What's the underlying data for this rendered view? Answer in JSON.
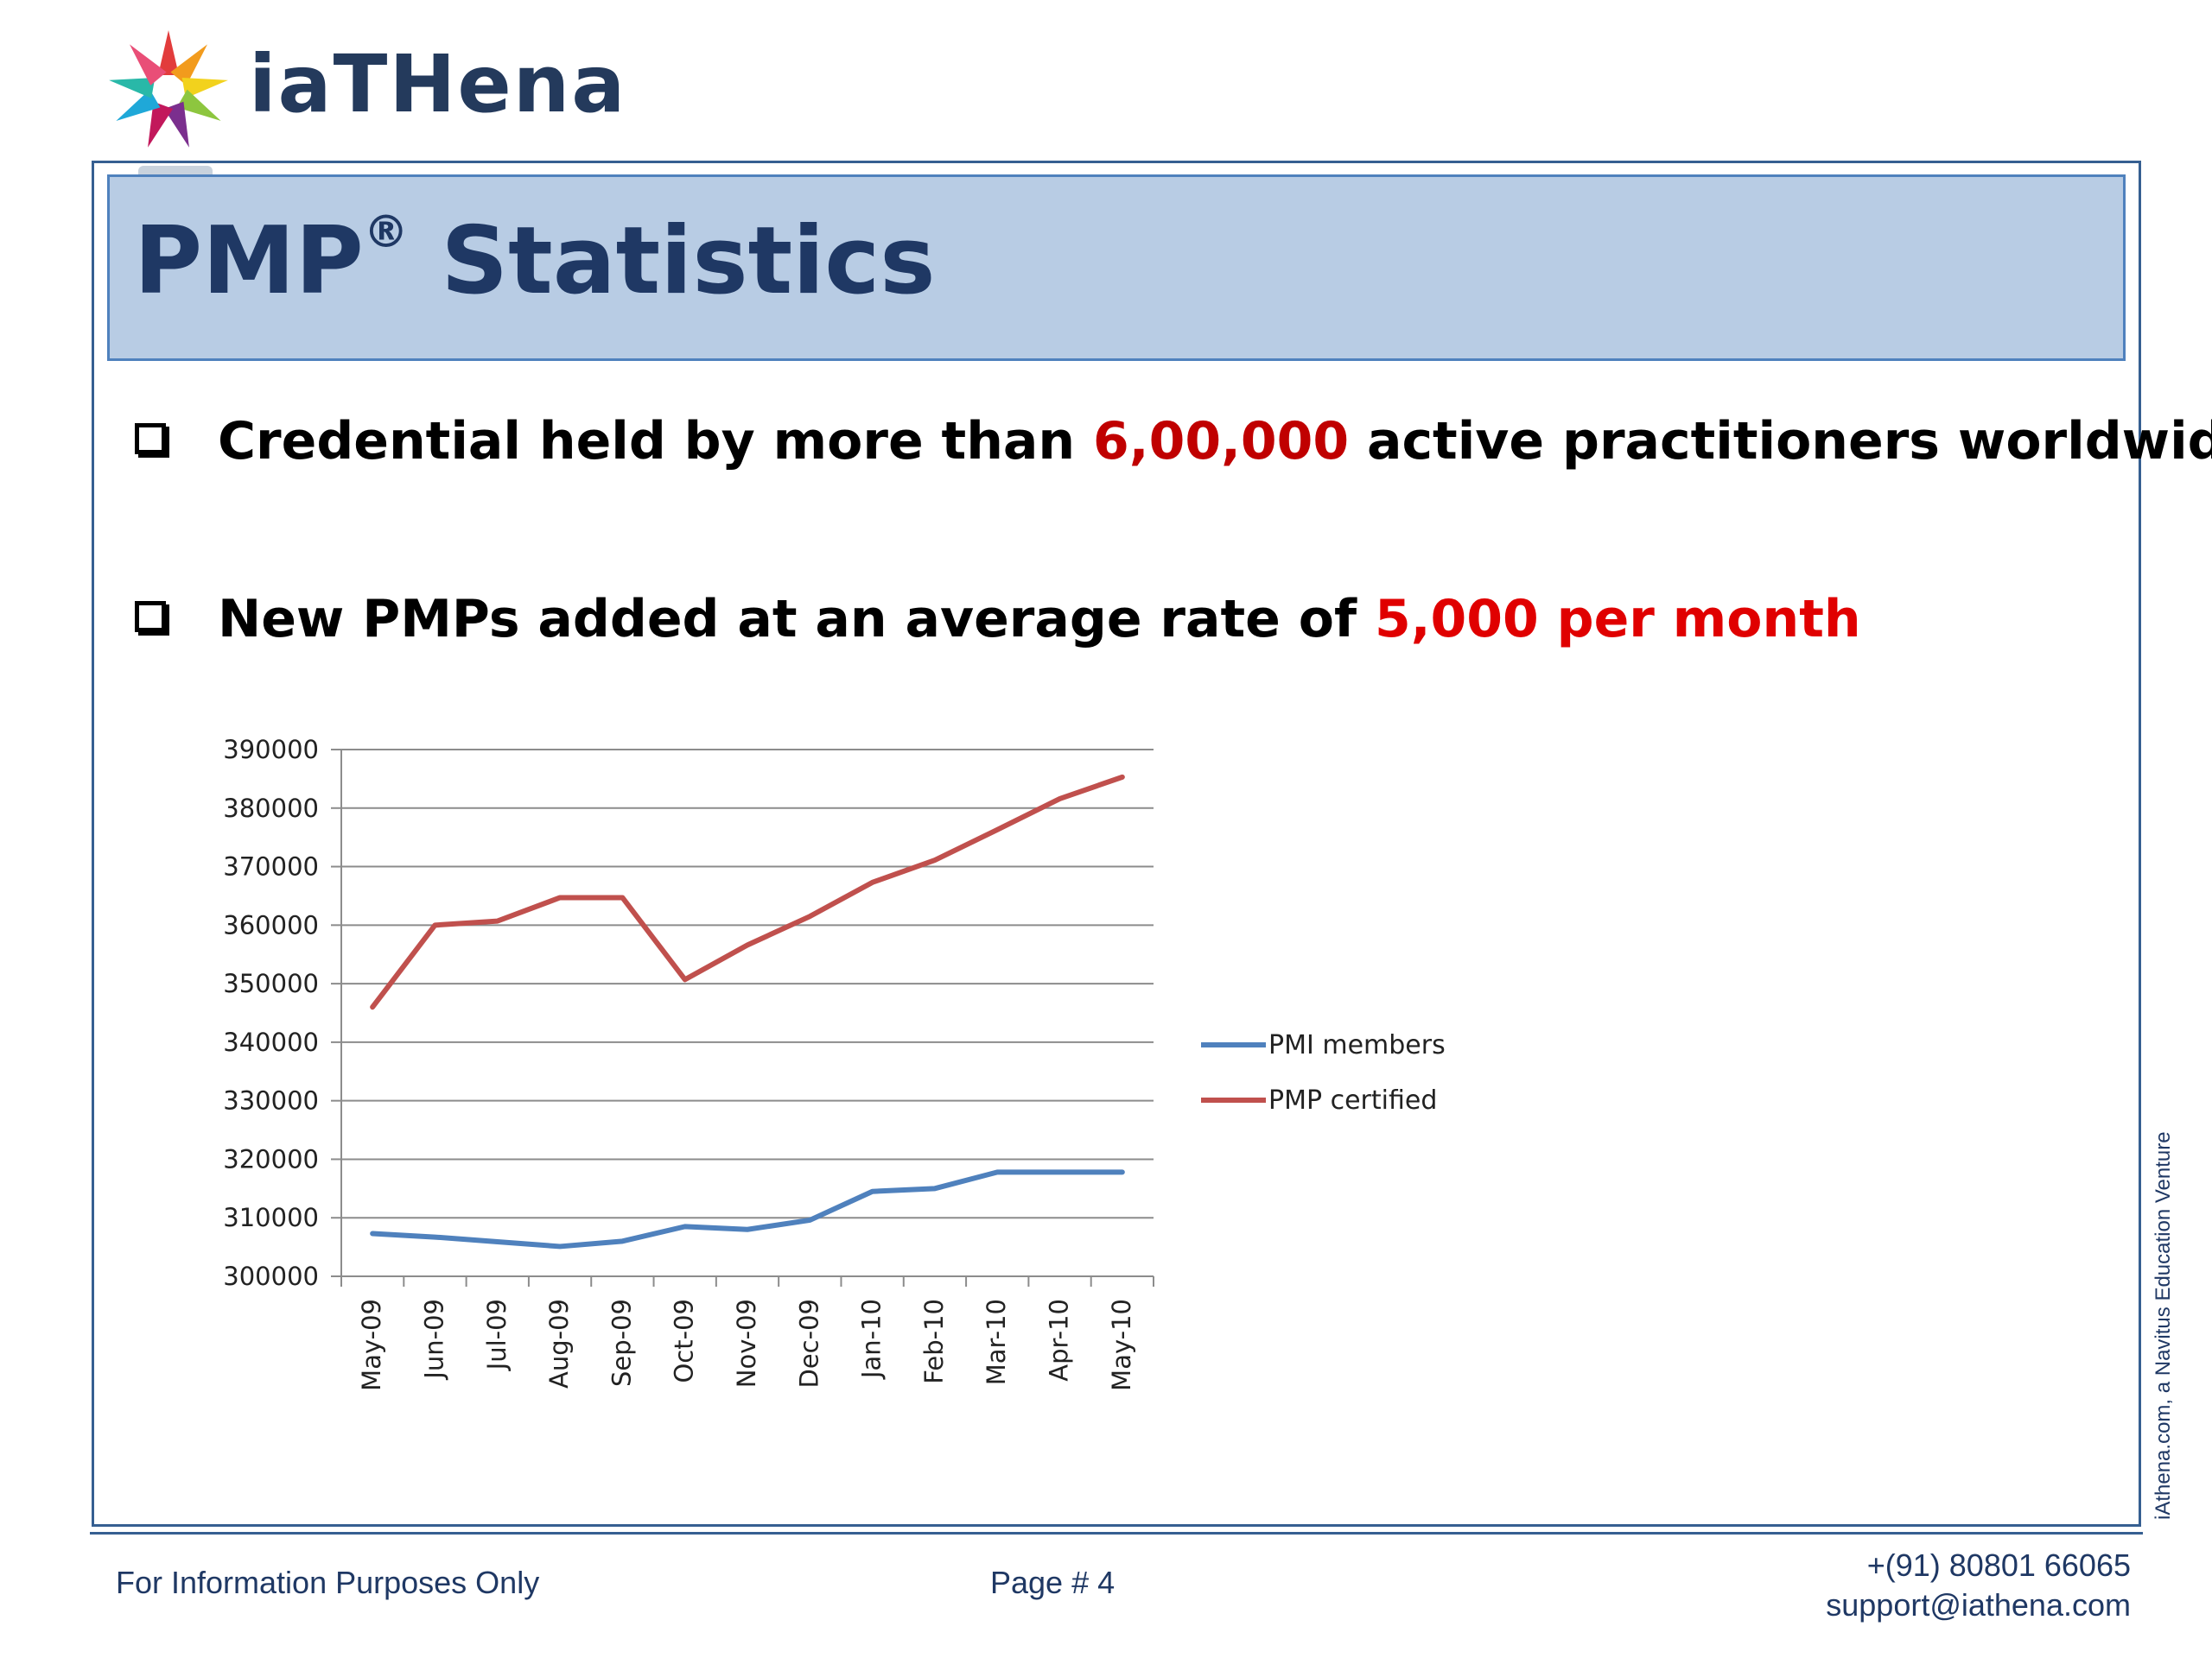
{
  "brand": {
    "logo_text": "iaTHena"
  },
  "title": {
    "main": "PMP",
    "mark": "®",
    "rest": " Statistics"
  },
  "bullets": [
    {
      "before": "Credential held by more than ",
      "highlight": "6,00,000",
      "after": " active practitioners worldwide"
    },
    {
      "before": "New PMPs added at an average rate of ",
      "highlight": "5,000 per month",
      "after": ""
    }
  ],
  "chart_data": {
    "type": "line",
    "title": "",
    "xlabel": "",
    "ylabel": "",
    "categories": [
      "May-09",
      "Jun-09",
      "Jul-09",
      "Aug-09",
      "Sep-09",
      "Oct-09",
      "Nov-09",
      "Dec-09",
      "Jan-10",
      "Feb-10",
      "Mar-10",
      "Apr-10",
      "May-10"
    ],
    "ylim": [
      300000,
      390000
    ],
    "yticks": [
      "390000",
      "380000",
      "370000",
      "360000",
      "350000",
      "340000",
      "330000",
      "320000",
      "310000",
      "300000"
    ],
    "grid": true,
    "legend_position": "right",
    "series": [
      {
        "name": "PMI members",
        "color": "#4f81bd",
        "values": [
          307300,
          306700,
          305900,
          305100,
          306000,
          308500,
          308000,
          309600,
          314500,
          315000,
          317800,
          317800,
          317800
        ]
      },
      {
        "name": "PMP certified",
        "color": "#c0504d",
        "values": [
          346000,
          360000,
          360700,
          364700,
          364700,
          350700,
          356600,
          361500,
          367300,
          371100,
          376300,
          381600,
          385300
        ]
      }
    ]
  },
  "side_note": "iAthena.com, a Navitus Education Venture",
  "footer": {
    "left": "For Information Purposes Only",
    "page": "Page # 4",
    "phone": "+(91) 80801 66065",
    "email": "support@iathena.com"
  }
}
